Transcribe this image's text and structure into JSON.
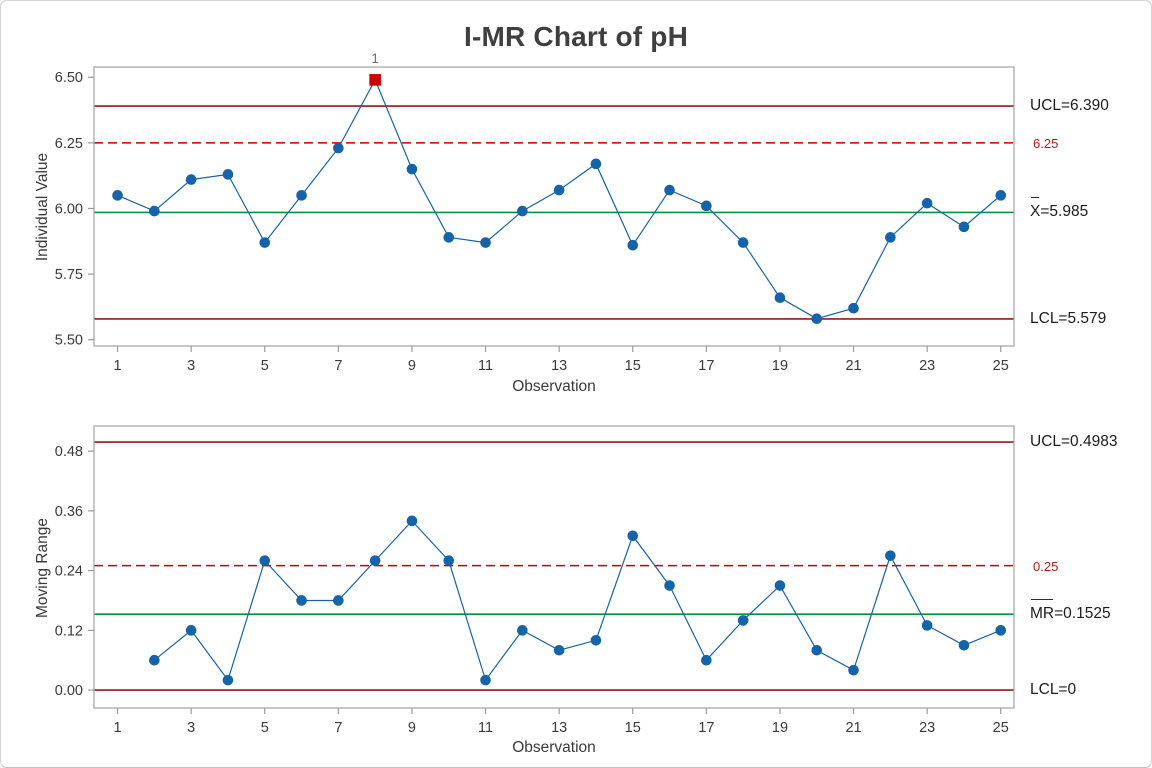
{
  "title": "I-MR Chart of pH",
  "colors": {
    "series_blue": "#1563a9",
    "center_green": "#009342",
    "limit_dark_red": "#8e1b1b",
    "ref_red": "#c00000",
    "ooc_red": "#cc0000",
    "frame_gray": "#a9a9a9",
    "tick_gray": "#9a9a9a",
    "text_dark": "#3a3a3a",
    "ooc_label_gray": "#6e6e6e"
  },
  "chart_data": [
    {
      "type": "line",
      "name": "individuals",
      "title": "I-MR Chart of pH",
      "xlabel": "Observation",
      "ylabel": "Individual Value",
      "x": [
        1,
        2,
        3,
        4,
        5,
        6,
        7,
        8,
        9,
        10,
        11,
        12,
        13,
        14,
        15,
        16,
        17,
        18,
        19,
        20,
        21,
        22,
        23,
        24,
        25
      ],
      "values": [
        6.05,
        5.99,
        6.11,
        6.13,
        5.87,
        6.05,
        6.23,
        6.49,
        6.15,
        5.89,
        5.87,
        5.99,
        6.07,
        6.17,
        5.86,
        6.07,
        6.01,
        5.87,
        5.66,
        5.58,
        5.62,
        5.89,
        6.02,
        5.93,
        6.05
      ],
      "center": 5.985,
      "ucl": 6.39,
      "lcl": 5.579,
      "ref_line": 6.25,
      "ylim": [
        5.476,
        6.539
      ],
      "xlim": [
        0.36,
        25.36
      ],
      "yticks": [
        [
          5.5,
          "5.50"
        ],
        [
          5.75,
          "5.75"
        ],
        [
          6.0,
          "6.00"
        ],
        [
          6.25,
          "6.25"
        ],
        [
          6.5,
          "6.50"
        ]
      ],
      "xticks": [
        [
          1,
          "1"
        ],
        [
          3,
          "3"
        ],
        [
          5,
          "5"
        ],
        [
          7,
          "7"
        ],
        [
          9,
          "9"
        ],
        [
          11,
          "11"
        ],
        [
          13,
          "13"
        ],
        [
          15,
          "15"
        ],
        [
          17,
          "17"
        ],
        [
          19,
          "19"
        ],
        [
          21,
          "21"
        ],
        [
          23,
          "23"
        ],
        [
          25,
          "25"
        ]
      ],
      "out_of_control": [
        {
          "index": 8,
          "label": "1"
        }
      ],
      "limit_labels": {
        "ucl": "UCL=6.390",
        "ref": "6.25",
        "center_prefix": "X",
        "center_rest": "=5.985",
        "lcl": "LCL=5.579"
      },
      "legend_position": "right",
      "grid": false
    },
    {
      "type": "line",
      "name": "moving-range",
      "xlabel": "Observation",
      "ylabel": "Moving Range",
      "x": [
        1,
        2,
        3,
        4,
        5,
        6,
        7,
        8,
        9,
        10,
        11,
        12,
        13,
        14,
        15,
        16,
        17,
        18,
        19,
        20,
        21,
        22,
        23,
        24,
        25
      ],
      "values": [
        null,
        0.06,
        0.12,
        0.02,
        0.26,
        0.18,
        0.18,
        0.26,
        0.34,
        0.26,
        0.02,
        0.12,
        0.08,
        0.1,
        0.31,
        0.21,
        0.06,
        0.14,
        0.21,
        0.08,
        0.04,
        0.27,
        0.13,
        0.09,
        0.12
      ],
      "center": 0.1525,
      "ucl": 0.4983,
      "lcl": 0,
      "ref_line": 0.25,
      "ylim": [
        -0.036,
        0.5305
      ],
      "xlim": [
        0.36,
        25.36
      ],
      "yticks": [
        [
          0.0,
          "0.00"
        ],
        [
          0.12,
          "0.12"
        ],
        [
          0.24,
          "0.24"
        ],
        [
          0.36,
          "0.36"
        ],
        [
          0.48,
          "0.48"
        ]
      ],
      "xticks": [
        [
          1,
          "1"
        ],
        [
          3,
          "3"
        ],
        [
          5,
          "5"
        ],
        [
          7,
          "7"
        ],
        [
          9,
          "9"
        ],
        [
          11,
          "11"
        ],
        [
          13,
          "13"
        ],
        [
          15,
          "15"
        ],
        [
          17,
          "17"
        ],
        [
          19,
          "19"
        ],
        [
          21,
          "21"
        ],
        [
          23,
          "23"
        ],
        [
          25,
          "25"
        ]
      ],
      "out_of_control": [],
      "limit_labels": {
        "ucl": "UCL=0.4983",
        "ref": "0.25",
        "center_prefix": "MR",
        "center_rest": "=0.1525",
        "lcl": "LCL=0"
      },
      "legend_position": "right",
      "grid": false
    }
  ]
}
